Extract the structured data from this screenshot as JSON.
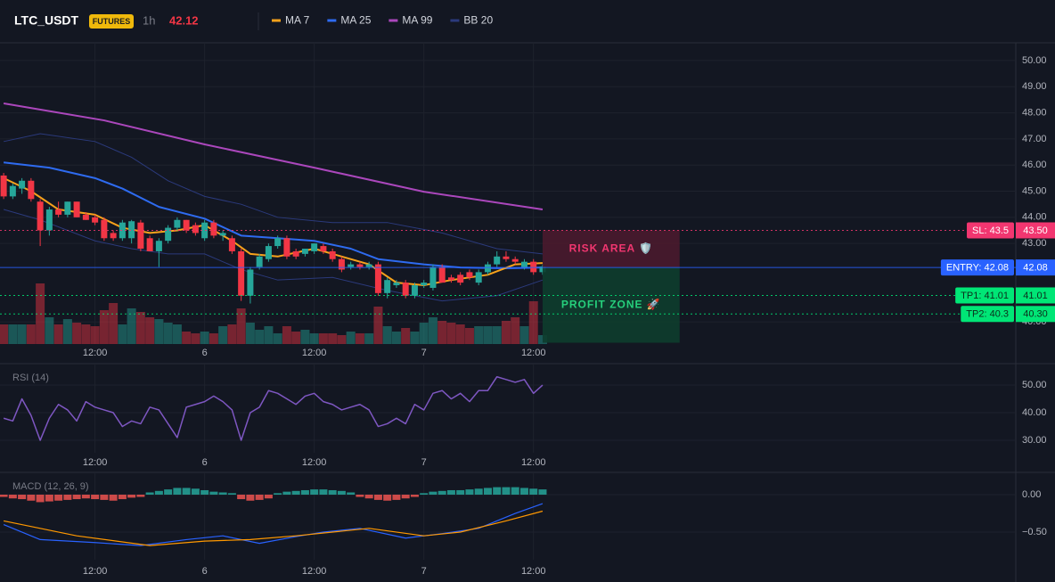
{
  "header": {
    "symbol": "LTC_USDT",
    "badge": "FUTURES",
    "interval": "1h",
    "price": "42.12"
  },
  "chart_data": [
    {
      "type": "candlestick",
      "x": [
        0,
        1,
        2,
        3,
        4,
        5,
        6,
        7,
        8,
        9,
        10,
        11,
        12,
        13,
        14,
        15,
        16,
        17,
        18,
        19,
        20,
        21,
        22,
        23,
        24,
        25,
        26,
        27,
        28,
        29,
        30,
        31,
        32,
        33,
        34,
        35,
        36,
        37,
        38,
        39,
        40,
        41,
        42,
        43,
        44,
        45,
        46,
        47,
        48,
        49,
        50,
        51,
        52,
        53,
        54,
        55,
        56,
        57,
        58,
        59
      ],
      "open": [
        45.6,
        44.8,
        45.1,
        45.4,
        44.6,
        43.5,
        44.3,
        44.1,
        44.6,
        44.1,
        44.0,
        43.9,
        43.4,
        43.2,
        43.2,
        43.8,
        43.2,
        42.7,
        43.1,
        43.6,
        43.9,
        43.7,
        43.2,
        43.8,
        43.3,
        43.2,
        42.7,
        41.0,
        42.1,
        42.4,
        42.9,
        43.2,
        42.7,
        42.6,
        42.7,
        42.9,
        42.7,
        42.4,
        42.1,
        42.2,
        42.1,
        42.2,
        41.1,
        41.4,
        41.5,
        41.0,
        41.4,
        41.3,
        42.1,
        41.7,
        41.8,
        41.9,
        41.5,
        41.9,
        42.2,
        42.5,
        42.4,
        42.1,
        42.3,
        41.9
      ],
      "high": [
        45.7,
        45.3,
        45.5,
        45.5,
        44.7,
        44.4,
        44.6,
        44.6,
        44.6,
        44.2,
        44.1,
        44.0,
        43.5,
        43.9,
        43.9,
        43.9,
        43.3,
        43.2,
        43.7,
        44.0,
        43.9,
        43.8,
        43.9,
        43.9,
        43.5,
        43.3,
        42.8,
        42.1,
        42.6,
        43.0,
        43.3,
        43.3,
        42.8,
        42.8,
        43.0,
        43.0,
        42.8,
        42.5,
        42.3,
        42.3,
        42.3,
        42.3,
        41.7,
        41.6,
        41.6,
        41.5,
        41.6,
        42.2,
        42.2,
        41.8,
        41.9,
        42.0,
        42.0,
        42.3,
        42.7,
        42.7,
        42.5,
        42.4,
        42.4,
        42.2
      ],
      "low": [
        44.7,
        44.7,
        44.9,
        44.6,
        42.9,
        43.3,
        44.0,
        44.0,
        44.0,
        43.9,
        43.7,
        43.1,
        43.1,
        43.1,
        43.0,
        42.7,
        42.7,
        42.1,
        43.0,
        43.5,
        43.4,
        43.3,
        43.1,
        43.2,
        43.1,
        42.6,
        40.8,
        40.7,
        42.0,
        42.3,
        42.8,
        42.4,
        42.4,
        42.5,
        42.6,
        42.6,
        42.3,
        41.9,
        42.0,
        42.0,
        42.0,
        41.0,
        40.9,
        41.3,
        40.9,
        40.9,
        41.3,
        41.2,
        41.5,
        41.5,
        41.4,
        41.6,
        41.4,
        41.8,
        42.1,
        42.3,
        42.2,
        42.0,
        41.8,
        41.8
      ],
      "close": [
        44.8,
        45.2,
        45.4,
        44.7,
        43.5,
        44.3,
        44.1,
        44.6,
        44.0,
        43.9,
        43.8,
        43.2,
        43.2,
        43.8,
        43.85,
        42.8,
        42.7,
        43.1,
        43.6,
        43.9,
        43.5,
        43.4,
        43.8,
        43.3,
        43.4,
        42.7,
        41.0,
        42.0,
        42.5,
        42.9,
        43.2,
        42.5,
        42.5,
        42.8,
        43.0,
        42.7,
        42.4,
        42.0,
        42.2,
        42.1,
        42.2,
        41.1,
        41.6,
        41.5,
        41.0,
        41.4,
        41.5,
        42.1,
        41.5,
        41.6,
        41.5,
        41.7,
        41.9,
        42.2,
        42.5,
        42.4,
        42.3,
        42.3,
        41.9,
        42.12
      ],
      "volume": [
        22,
        22,
        22,
        22,
        68,
        30,
        22,
        28,
        24,
        22,
        20,
        38,
        46,
        22,
        40,
        36,
        30,
        28,
        24,
        22,
        14,
        12,
        14,
        12,
        20,
        22,
        40,
        24,
        16,
        20,
        12,
        20,
        14,
        16,
        12,
        12,
        12,
        10,
        14,
        12,
        12,
        42,
        20,
        14,
        18,
        14,
        24,
        30,
        26,
        24,
        22,
        18,
        20,
        20,
        20,
        26,
        30,
        20,
        48,
        10
      ],
      "up_color": "#26a69a",
      "down_color": "#f23645",
      "series": [
        {
          "name": "MA 7",
          "color": "#f7a21b",
          "x": [
            0,
            3,
            6,
            10,
            13,
            16,
            19,
            22,
            25,
            27,
            30,
            34,
            37,
            40,
            43,
            46,
            49,
            53,
            56,
            59
          ],
          "values": [
            45.5,
            45.0,
            44.3,
            44.1,
            43.6,
            43.4,
            43.5,
            43.7,
            43.1,
            42.6,
            42.5,
            42.8,
            42.5,
            42.2,
            41.5,
            41.4,
            41.6,
            41.8,
            42.2,
            42.25
          ]
        },
        {
          "name": "MA 25",
          "color": "#2e6bf0",
          "x": [
            0,
            5,
            10,
            13,
            17,
            22,
            26,
            30,
            34,
            38,
            41,
            46,
            50,
            55,
            59
          ],
          "values": [
            46.1,
            45.9,
            45.5,
            45.1,
            44.4,
            43.95,
            43.3,
            43.2,
            43.1,
            42.8,
            42.4,
            42.2,
            42.08,
            42.05,
            42.08
          ]
        },
        {
          "name": "MA 99",
          "color": "#ab47bc",
          "x": [
            0,
            11,
            22,
            34,
            46,
            59
          ],
          "values": [
            48.36,
            47.71,
            46.79,
            45.9,
            44.98,
            44.3
          ]
        },
        {
          "name": "BB 20",
          "color": "#2b3a7c",
          "x": [
            0,
            4,
            10,
            14,
            18,
            22,
            26,
            30,
            36,
            42,
            48,
            54,
            59
          ],
          "upper": [
            46.9,
            47.2,
            46.9,
            46.3,
            45.4,
            44.8,
            44.5,
            44.0,
            43.8,
            43.8,
            43.4,
            42.8,
            42.6
          ],
          "lower": [
            44.3,
            43.9,
            43.1,
            42.8,
            42.6,
            42.6,
            42.0,
            41.6,
            41.7,
            41.2,
            40.8,
            41.0,
            41.6
          ]
        }
      ],
      "levels": [
        {
          "label": "SL: 43.5",
          "value": 43.5,
          "value_label": "43.50",
          "color": "#f23670",
          "text_color": "#ffffff",
          "style": "dotted"
        },
        {
          "label": "ENTRY: 42.08",
          "value": 42.08,
          "value_label": "42.08",
          "color": "#2962ff",
          "text_color": "#ffffff",
          "style": "solid"
        },
        {
          "label": "TP1: 41.01",
          "value": 41.01,
          "value_label": "41.01",
          "color": "#00e676",
          "text_color": "#0b2e1c",
          "style": "dotted"
        },
        {
          "label": "TP2: 40.3",
          "value": 40.3,
          "value_label": "40.30",
          "color": "#00e676",
          "text_color": "#0b2e1c",
          "style": "dotted"
        }
      ],
      "zones": [
        {
          "label": "RISK AREA 🛡️",
          "from": 42.08,
          "to": 43.5,
          "x": [
            59,
            74
          ],
          "color": "#4a1a2e",
          "text_color": "#f23670"
        },
        {
          "label": "PROFIT ZONE 🚀",
          "from": 39.2,
          "to": 42.08,
          "x": [
            59,
            74
          ],
          "color": "#0e3d2e",
          "text_color": "#26d07c"
        }
      ],
      "xlim": [
        -0.4,
        110.8
      ],
      "ylim": [
        39.15,
        50.68
      ],
      "xticks": [
        {
          "value": 10,
          "label": "12:00"
        },
        {
          "value": 22,
          "label": "6"
        },
        {
          "value": 34,
          "label": "12:00"
        },
        {
          "value": 46,
          "label": "7"
        },
        {
          "value": 58,
          "label": "12:00"
        }
      ],
      "yticks": [
        {
          "value": 50,
          "label": "50.00"
        },
        {
          "value": 49,
          "label": "49.00"
        },
        {
          "value": 48,
          "label": "48.00"
        },
        {
          "value": 47,
          "label": "47.00"
        },
        {
          "value": 46,
          "label": "46.00"
        },
        {
          "value": 45,
          "label": "45.00"
        },
        {
          "value": 44,
          "label": "44.00"
        },
        {
          "value": 43,
          "label": "43.00"
        },
        {
          "value": 40,
          "label": "40.00"
        }
      ],
      "grid": true
    },
    {
      "type": "line",
      "title": "RSI (14)",
      "color": "#7e57c2",
      "x": [
        0,
        1,
        2,
        3,
        4,
        5,
        6,
        7,
        8,
        9,
        10,
        11,
        12,
        13,
        14,
        15,
        16,
        17,
        18,
        19,
        20,
        21,
        22,
        23,
        24,
        25,
        26,
        27,
        28,
        29,
        30,
        31,
        32,
        33,
        34,
        35,
        36,
        37,
        38,
        39,
        40,
        41,
        42,
        43,
        44,
        45,
        46,
        47,
        48,
        49,
        50,
        51,
        52,
        53,
        54,
        55,
        56,
        57,
        58,
        59
      ],
      "values": [
        38,
        37,
        45,
        39,
        30,
        38,
        43,
        41,
        37,
        44,
        42,
        41,
        40,
        35,
        37,
        36,
        42,
        41,
        36,
        31,
        42,
        43,
        44,
        46,
        44,
        41,
        30,
        40,
        42,
        48,
        47,
        45,
        43,
        46,
        47,
        44,
        43,
        41,
        42,
        43,
        41,
        35,
        36,
        38,
        36,
        43,
        41,
        47,
        48,
        45,
        47,
        44,
        48,
        48,
        53,
        52,
        51,
        52,
        47,
        50
      ],
      "xlim": [
        -0.4,
        110.8
      ],
      "ylim": [
        25.5,
        57.1
      ],
      "xticks": [
        {
          "value": 10,
          "label": "12:00"
        },
        {
          "value": 22,
          "label": "6"
        },
        {
          "value": 34,
          "label": "12:00"
        },
        {
          "value": 46,
          "label": "7"
        },
        {
          "value": 58,
          "label": "12:00"
        }
      ],
      "yticks": [
        {
          "value": 50,
          "label": "50.00"
        },
        {
          "value": 40,
          "label": "40.00"
        },
        {
          "value": 30,
          "label": "30.00"
        }
      ],
      "grid": true
    },
    {
      "type": "bar",
      "title": "MACD (12, 26, 9)",
      "up_color": "#26a69a",
      "down_color": "#ef5350",
      "x": [
        0,
        1,
        2,
        3,
        4,
        5,
        6,
        7,
        8,
        9,
        10,
        11,
        12,
        13,
        14,
        15,
        16,
        17,
        18,
        19,
        20,
        21,
        22,
        23,
        24,
        25,
        26,
        27,
        28,
        29,
        30,
        31,
        32,
        33,
        34,
        35,
        36,
        37,
        38,
        39,
        40,
        41,
        42,
        43,
        44,
        45,
        46,
        47,
        48,
        49,
        50,
        51,
        52,
        53,
        54,
        55,
        56,
        57,
        58,
        59
      ],
      "values": [
        -0.03,
        -0.05,
        -0.06,
        -0.08,
        -0.1,
        -0.09,
        -0.08,
        -0.07,
        -0.06,
        -0.05,
        -0.06,
        -0.07,
        -0.08,
        -0.06,
        -0.04,
        -0.03,
        0.03,
        0.05,
        0.07,
        0.09,
        0.09,
        0.08,
        0.06,
        0.04,
        0.03,
        0.02,
        -0.06,
        -0.08,
        -0.07,
        -0.05,
        0.02,
        0.04,
        0.05,
        0.06,
        0.07,
        0.07,
        0.06,
        0.05,
        0.03,
        -0.03,
        -0.05,
        -0.07,
        -0.08,
        -0.07,
        -0.05,
        -0.03,
        0.02,
        0.04,
        0.05,
        0.06,
        0.06,
        0.07,
        0.08,
        0.09,
        0.1,
        0.1,
        0.1,
        0.09,
        0.08,
        0.07
      ],
      "series": [
        {
          "color": "#2962ff",
          "x": [
            0,
            4,
            10,
            15,
            20,
            24,
            28,
            32,
            35,
            39,
            44,
            48,
            52,
            56,
            59
          ],
          "values": [
            -0.4,
            -0.6,
            -0.64,
            -0.68,
            -0.6,
            -0.55,
            -0.65,
            -0.56,
            -0.5,
            -0.45,
            -0.58,
            -0.52,
            -0.45,
            -0.25,
            -0.12
          ]
        },
        {
          "color": "#ff9800",
          "x": [
            0,
            8,
            16,
            22,
            27,
            32,
            40,
            46,
            50,
            55,
            59
          ],
          "values": [
            -0.35,
            -0.55,
            -0.68,
            -0.62,
            -0.6,
            -0.55,
            -0.45,
            -0.55,
            -0.5,
            -0.35,
            -0.22
          ]
        }
      ],
      "xlim": [
        -0.4,
        110.8
      ],
      "ylim": [
        -0.869,
        0.274
      ],
      "xticks": [
        {
          "value": 10,
          "label": "12:00"
        },
        {
          "value": 22,
          "label": "6"
        },
        {
          "value": 34,
          "label": "12:00"
        },
        {
          "value": 46,
          "label": "7"
        },
        {
          "value": 58,
          "label": "12:00"
        }
      ],
      "yticks": [
        {
          "value": 0,
          "label": "0.00"
        },
        {
          "value": -0.5,
          "label": "−0.50"
        }
      ],
      "grid": true
    }
  ]
}
